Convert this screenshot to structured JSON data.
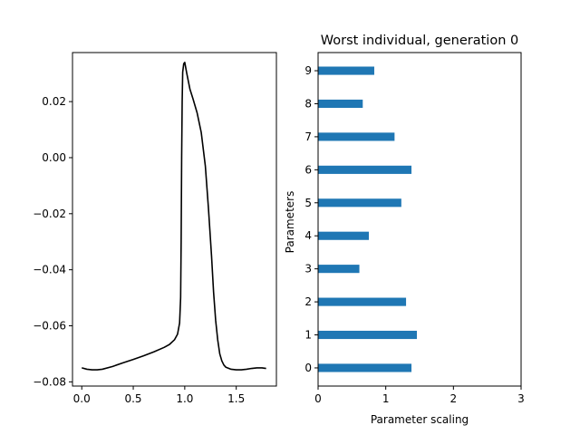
{
  "chart_data": [
    {
      "type": "line",
      "title": "",
      "xlabel": "",
      "ylabel": "",
      "xlim": [
        -0.09,
        1.89
      ],
      "ylim": [
        -0.0815,
        0.0375
      ],
      "xticks": [
        0.0,
        0.5,
        1.0,
        1.5
      ],
      "xtick_labels": [
        "0.0",
        "0.5",
        "1.0",
        "1.5"
      ],
      "yticks": [
        -0.08,
        -0.06,
        -0.04,
        -0.02,
        0.0,
        0.02
      ],
      "ytick_labels": [
        "−0.08",
        "−0.06",
        "−0.04",
        "−0.02",
        "0.00",
        "0.02"
      ],
      "grid": false,
      "series": [
        {
          "color": "#000000",
          "x": [
            0.0,
            0.05,
            0.1,
            0.15,
            0.2,
            0.3,
            0.4,
            0.5,
            0.6,
            0.7,
            0.8,
            0.85,
            0.9,
            0.93,
            0.95,
            0.96,
            0.965,
            0.97,
            0.975,
            0.98,
            0.99,
            1.0,
            1.02,
            1.05,
            1.08,
            1.12,
            1.16,
            1.2,
            1.23,
            1.26,
            1.28,
            1.3,
            1.32,
            1.34,
            1.36,
            1.38,
            1.4,
            1.45,
            1.5,
            1.55,
            1.6,
            1.65,
            1.7,
            1.75,
            1.79
          ],
          "y": [
            -0.075,
            -0.0755,
            -0.0757,
            -0.0757,
            -0.0755,
            -0.0745,
            -0.0732,
            -0.072,
            -0.0707,
            -0.0693,
            -0.0677,
            -0.0667,
            -0.065,
            -0.063,
            -0.059,
            -0.05,
            -0.03,
            0.0,
            0.02,
            0.0305,
            0.0335,
            0.034,
            0.03,
            0.0245,
            0.021,
            0.016,
            0.009,
            -0.003,
            -0.018,
            -0.035,
            -0.048,
            -0.058,
            -0.065,
            -0.07,
            -0.0725,
            -0.074,
            -0.0748,
            -0.0755,
            -0.0757,
            -0.0757,
            -0.0755,
            -0.0752,
            -0.075,
            -0.075,
            -0.0752
          ]
        }
      ]
    },
    {
      "type": "bar",
      "orientation": "horizontal",
      "title": "Worst individual, generation 0",
      "xlabel": "Parameter scaling",
      "ylabel": "Parameters",
      "xlim": [
        0,
        3
      ],
      "ylim": [
        -0.55,
        9.55
      ],
      "xticks": [
        0,
        1,
        2,
        3
      ],
      "xtick_labels": [
        "0",
        "1",
        "2",
        "3"
      ],
      "categories": [
        "0",
        "1",
        "2",
        "3",
        "4",
        "5",
        "6",
        "7",
        "8",
        "9"
      ],
      "values": [
        1.38,
        1.46,
        1.3,
        0.61,
        0.75,
        1.23,
        1.38,
        1.13,
        0.66,
        0.83
      ],
      "bar_color": "#1f77b4",
      "grid": false
    }
  ]
}
